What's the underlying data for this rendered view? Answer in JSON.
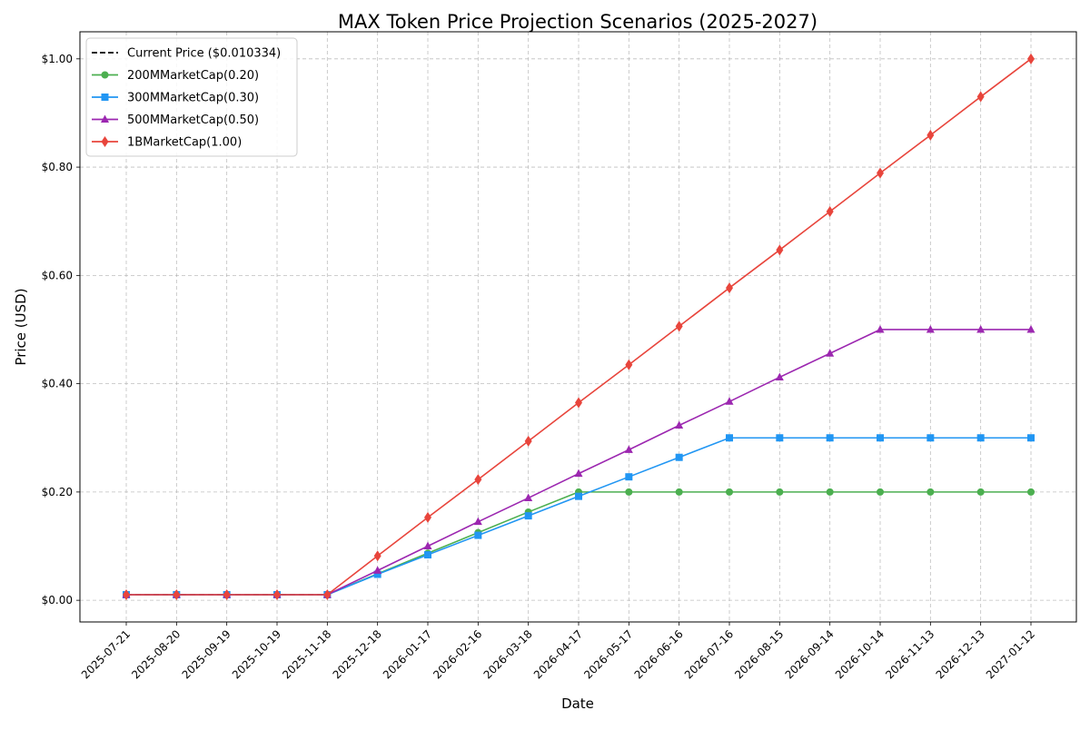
{
  "chart_data": {
    "type": "line",
    "title": "MAX Token Price Projection Scenarios (2025-2027)",
    "xlabel": "Date",
    "ylabel": "Price (USD)",
    "ylim": [
      -0.04,
      1.05
    ],
    "yticks": [
      0.0,
      0.2,
      0.4,
      0.6,
      0.8,
      1.0
    ],
    "ytick_labels": [
      "$0.00",
      "$0.20",
      "$0.40",
      "$0.60",
      "$0.80",
      "$1.00"
    ],
    "grid": true,
    "legend_position": "top-left",
    "categories": [
      "2025-07-21",
      "2025-08-20",
      "2025-09-19",
      "2025-10-19",
      "2025-11-18",
      "2025-12-18",
      "2026-01-17",
      "2026-02-16",
      "2026-03-18",
      "2026-04-17",
      "2026-05-17",
      "2026-06-16",
      "2026-07-16",
      "2026-08-15",
      "2026-09-14",
      "2026-10-14",
      "2026-11-13",
      "2026-12-13",
      "2027-01-12"
    ],
    "reference_line": {
      "name": "Current Price ($0.010334)",
      "value": 0.010334,
      "color": "#000000"
    },
    "series": [
      {
        "name": "200MMarketCap(0.20)",
        "color": "#4caf50",
        "marker": "circle",
        "values": [
          0.0103,
          0.0103,
          0.0103,
          0.0103,
          0.0103,
          0.049,
          0.087,
          0.125,
          0.163,
          0.2,
          0.2,
          0.2,
          0.2,
          0.2,
          0.2,
          0.2,
          0.2,
          0.2,
          0.2
        ]
      },
      {
        "name": "300MMarketCap(0.30)",
        "color": "#2196f3",
        "marker": "square",
        "values": [
          0.0103,
          0.0103,
          0.0103,
          0.0103,
          0.0103,
          0.048,
          0.084,
          0.12,
          0.156,
          0.192,
          0.228,
          0.264,
          0.3,
          0.3,
          0.3,
          0.3,
          0.3,
          0.3,
          0.3
        ]
      },
      {
        "name": "500MMarketCap(0.50)",
        "color": "#9c27b0",
        "marker": "triangle",
        "values": [
          0.0103,
          0.0103,
          0.0103,
          0.0103,
          0.0103,
          0.055,
          0.1,
          0.145,
          0.189,
          0.234,
          0.278,
          0.323,
          0.367,
          0.412,
          0.456,
          0.5,
          0.5,
          0.5,
          0.5
        ]
      },
      {
        "name": "1BMarketCap(1.00)",
        "color": "#e8453c",
        "marker": "diamond",
        "values": [
          0.0103,
          0.0103,
          0.0103,
          0.0103,
          0.0103,
          0.082,
          0.153,
          0.223,
          0.294,
          0.365,
          0.435,
          0.506,
          0.577,
          0.647,
          0.718,
          0.789,
          0.859,
          0.93,
          1.0
        ]
      }
    ]
  }
}
